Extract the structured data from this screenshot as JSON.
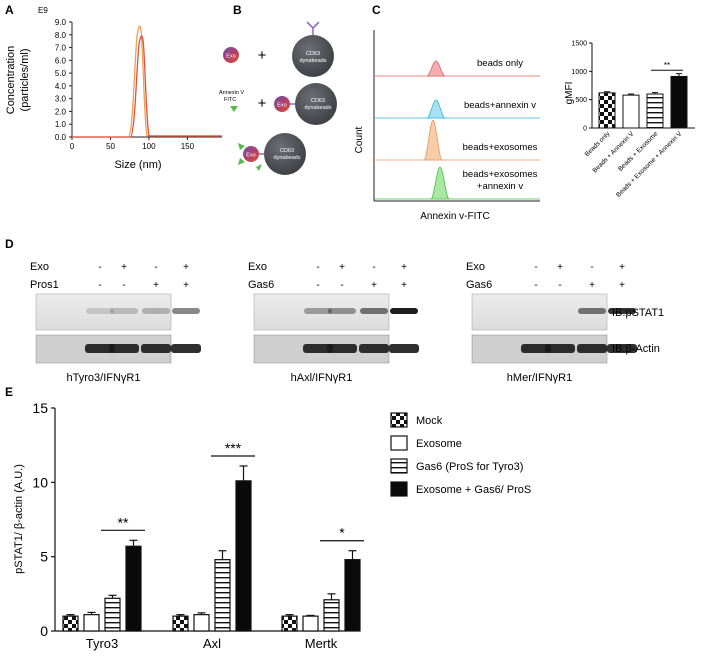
{
  "figure": {
    "panel_labels": [
      "A",
      "B",
      "C",
      "D",
      "E"
    ]
  },
  "panel_a": {
    "exponent_label": "E9",
    "ylabel_line1": "Concentration",
    "ylabel_line2": "(particles/ml)",
    "xlabel": "Size (nm)",
    "colors": {
      "curve1": "#f0a050",
      "curve2": "#e05040"
    }
  },
  "panel_b": {
    "exo_label": "Exo",
    "bead_label_line1": "CD63",
    "bead_label_line2": "dynabeads",
    "annexin_line1": "Annexin V",
    "annexin_line2": "FITC",
    "plus_sign": "+"
  },
  "panel_c_flow": {
    "ylabel": "Count",
    "xlabel": "Annexin v-FITC",
    "tracks": [
      {
        "label_lines": [
          "beads only"
        ],
        "color": "#e06060",
        "fill": "#f4b0b0"
      },
      {
        "label_lines": [
          "beads+annexin v"
        ],
        "color": "#30b8e8",
        "fill": "#a8e0f4"
      },
      {
        "label_lines": [
          "beads+exosomes"
        ],
        "color": "#e89858",
        "fill": "#f7cca8"
      },
      {
        "label_lines": [
          "beads+exosomes",
          "+annexin v"
        ],
        "color": "#40c040",
        "fill": "#a8e8a0"
      }
    ]
  },
  "panel_c_bar": {
    "ylabel": "gMFI",
    "significance": "**",
    "chart_data": {
      "type": "bar",
      "categories": [
        "Beads only",
        "Beads + Annexin V",
        "Beads + Exosome",
        "Beads + Exosome + Annexin V"
      ],
      "values": [
        620,
        580,
        600,
        910
      ],
      "errors": [
        20,
        20,
        25,
        50
      ],
      "patterns": [
        "checker",
        "open",
        "hstripe",
        "solid"
      ],
      "ylim": [
        0,
        1500
      ],
      "yticks": [
        "0",
        "500",
        "1000",
        "1500"
      ],
      "ylabel": "gMFI"
    }
  },
  "panel_d": {
    "row_labels": [
      "Exo",
      "Gas6"
    ],
    "blots": [
      {
        "row2_label": "Pros1",
        "exo": [
          "-",
          "+",
          "-",
          "+"
        ],
        "ligand": [
          "-",
          "-",
          "+",
          "+"
        ],
        "caption": "hTyro3/IFNγR1"
      },
      {
        "row2_label": "Gas6",
        "exo": [
          "-",
          "+",
          "-",
          "+"
        ],
        "ligand": [
          "-",
          "-",
          "+",
          "+"
        ],
        "caption": "hAxl/IFNγR1"
      },
      {
        "row2_label": "Gas6",
        "exo": [
          "-",
          "+",
          "-",
          "+"
        ],
        "ligand": [
          "-",
          "-",
          "+",
          "+"
        ],
        "caption": "hMer/IFNγR1"
      }
    ],
    "ib_labels": [
      "IB:pSTAT1",
      "IB:β-Actin"
    ]
  },
  "panel_e": {
    "ylabel": "pSTAT1/ β-actin (A.U.)",
    "legend": [
      "Mock",
      "Exosome",
      "Gas6 (ProS for Tyro3)",
      "Exosome + Gas6/ ProS"
    ],
    "chart_data": {
      "type": "bar",
      "categories": [
        "Tyro3",
        "Axl",
        "Mertk"
      ],
      "series": [
        {
          "name": "Mock",
          "pattern": "checker",
          "values": [
            1.0,
            1.0,
            1.0
          ],
          "errors": [
            0.1,
            0.1,
            0.1
          ]
        },
        {
          "name": "Exosome",
          "pattern": "open",
          "values": [
            1.1,
            1.1,
            1.0
          ],
          "errors": [
            0.15,
            0.12,
            0.05
          ]
        },
        {
          "name": "Gas6 (ProS for Tyro3)",
          "pattern": "hstripe",
          "values": [
            2.2,
            4.8,
            2.1
          ],
          "errors": [
            0.2,
            0.6,
            0.4
          ]
        },
        {
          "name": "Exosome + Gas6/ ProS",
          "pattern": "solid",
          "values": [
            5.7,
            10.1,
            4.8
          ],
          "errors": [
            0.4,
            1.0,
            0.6
          ]
        }
      ],
      "significance": [
        "**",
        "***",
        "*"
      ],
      "ylim": [
        0,
        15
      ],
      "yticks": [
        "0",
        "5",
        "10",
        "15"
      ],
      "ylabel": "pSTAT1/ β-actin (A.U.)"
    }
  }
}
